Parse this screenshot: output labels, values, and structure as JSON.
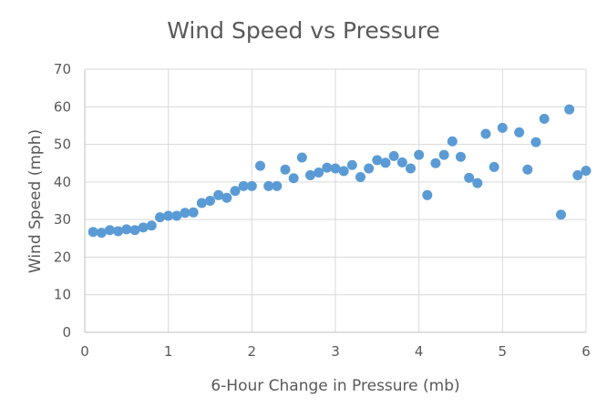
{
  "chart_data": {
    "type": "scatter",
    "title": "Wind Speed vs Pressure",
    "xlabel": "6-Hour Change in Pressure (mb)",
    "ylabel": "Wind Speed (mph)",
    "xlim": [
      0,
      6
    ],
    "ylim": [
      0,
      70
    ],
    "xticks": [
      0,
      1,
      2,
      3,
      4,
      5,
      6
    ],
    "yticks": [
      0,
      10,
      20,
      30,
      40,
      50,
      60,
      70
    ],
    "grid": true,
    "legend": "none",
    "marker_color": "#5b9bd5",
    "points": [
      [
        0.1,
        26.7
      ],
      [
        0.2,
        26.5
      ],
      [
        0.3,
        27.2
      ],
      [
        0.4,
        26.9
      ],
      [
        0.5,
        27.4
      ],
      [
        0.6,
        27.2
      ],
      [
        0.7,
        27.9
      ],
      [
        0.8,
        28.4
      ],
      [
        0.9,
        30.6
      ],
      [
        1.0,
        31.0
      ],
      [
        1.1,
        31.0
      ],
      [
        1.2,
        31.8
      ],
      [
        1.3,
        31.9
      ],
      [
        1.4,
        34.4
      ],
      [
        1.5,
        35.0
      ],
      [
        1.6,
        36.5
      ],
      [
        1.7,
        35.8
      ],
      [
        1.8,
        37.6
      ],
      [
        1.9,
        38.9
      ],
      [
        2.0,
        38.9
      ],
      [
        2.1,
        44.3
      ],
      [
        2.2,
        38.9
      ],
      [
        2.3,
        38.9
      ],
      [
        2.4,
        43.3
      ],
      [
        2.5,
        41.0
      ],
      [
        2.6,
        46.5
      ],
      [
        2.7,
        41.8
      ],
      [
        2.8,
        42.5
      ],
      [
        2.9,
        43.8
      ],
      [
        3.0,
        43.6
      ],
      [
        3.1,
        42.9
      ],
      [
        3.2,
        44.5
      ],
      [
        3.3,
        41.3
      ],
      [
        3.4,
        43.6
      ],
      [
        3.5,
        45.8
      ],
      [
        3.6,
        45.1
      ],
      [
        3.7,
        46.9
      ],
      [
        3.8,
        45.2
      ],
      [
        3.9,
        43.6
      ],
      [
        4.0,
        47.2
      ],
      [
        4.1,
        36.5
      ],
      [
        4.2,
        45.0
      ],
      [
        4.3,
        47.2
      ],
      [
        4.4,
        50.8
      ],
      [
        4.5,
        46.7
      ],
      [
        4.6,
        41.1
      ],
      [
        4.7,
        39.7
      ],
      [
        4.8,
        52.8
      ],
      [
        4.9,
        44.0
      ],
      [
        5.0,
        54.4
      ],
      [
        5.2,
        53.2
      ],
      [
        5.3,
        43.3
      ],
      [
        5.4,
        50.6
      ],
      [
        5.5,
        56.8
      ],
      [
        5.7,
        31.3
      ],
      [
        5.8,
        59.3
      ],
      [
        5.9,
        41.8
      ],
      [
        6.0,
        43.0
      ]
    ]
  }
}
